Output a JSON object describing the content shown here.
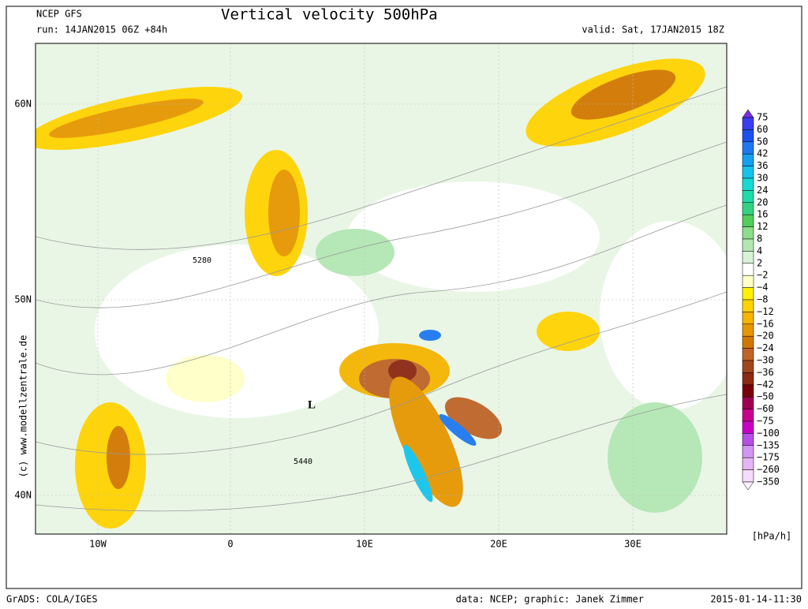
{
  "header": {
    "model": "NCEP GFS",
    "title": "Vertical velocity 500hPa",
    "run": "run: 14JAN2015 06Z +84h",
    "valid": "valid: Sat, 17JAN2015 18Z"
  },
  "map": {
    "lat_labels": [
      "60N",
      "50N",
      "40N"
    ],
    "lon_labels": [
      "10W",
      "0",
      "10E",
      "20E",
      "30E"
    ],
    "contour_labels": [
      "5280",
      "5440"
    ],
    "low_marker": "L",
    "credit": "(c) www.modellzentrale.de"
  },
  "colorbar": {
    "labels": [
      "75",
      "60",
      "50",
      "42",
      "36",
      "30",
      "24",
      "20",
      "16",
      "12",
      "8",
      "4",
      "2",
      "−2",
      "−4",
      "−8",
      "−12",
      "−16",
      "−20",
      "−24",
      "−30",
      "−36",
      "−42",
      "−50",
      "−60",
      "−75",
      "−100",
      "−135",
      "−175",
      "−260",
      "−350"
    ],
    "colors": [
      "#7b2ee0",
      "#3c3cf0",
      "#1e50f0",
      "#1e78f0",
      "#14a0f0",
      "#14c3eb",
      "#14dcd2",
      "#1edcaa",
      "#32d282",
      "#50cd5a",
      "#8cdc8c",
      "#b4e6b4",
      "#d7f2d7",
      "#ffffff",
      "#ffffc8",
      "#fff000",
      "#ffd200",
      "#f5b400",
      "#e69600",
      "#d27800",
      "#be6428",
      "#a0461e",
      "#8c2814",
      "#78000a",
      "#a00050",
      "#c8008c",
      "#c800c8",
      "#b450e6",
      "#d296f0",
      "#e6b4f5",
      "#f5dcfa",
      "#fff0ff"
    ],
    "unit": "[hPa/h]"
  },
  "footer": {
    "software": "GrADS: COLA/IGES",
    "source": "data: NCEP; graphic: Janek Zimmer",
    "timestamp": "2015-01-14-11:30"
  }
}
